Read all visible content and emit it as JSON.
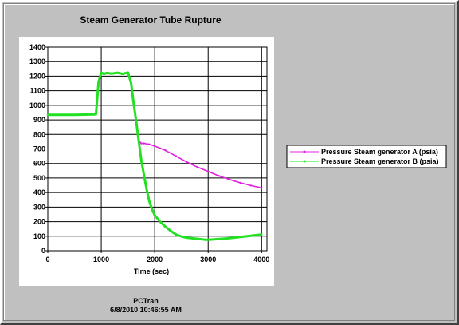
{
  "colors": {
    "background": "#c0c0c0",
    "plot_background": "#ffffff",
    "gridline": "#000000",
    "series_a": "#e020e0",
    "series_b": "#22e022"
  },
  "footer": {
    "program": "PCTran",
    "timestamp": "6/8/2010 10:46:55 AM"
  },
  "chart_data": {
    "type": "line",
    "title": "Steam Generator Tube Rupture",
    "xlabel": "Time (sec)",
    "ylabel": "",
    "xlim": [
      0,
      4100
    ],
    "ylim": [
      0,
      1400
    ],
    "xticks": [
      0,
      1000,
      2000,
      3000,
      4000
    ],
    "yticks": [
      0,
      100,
      200,
      300,
      400,
      500,
      600,
      700,
      800,
      900,
      1000,
      1100,
      1200,
      1300,
      1400
    ],
    "grid": true,
    "legend_position": "right",
    "series": [
      {
        "name": "Pressure Steam generator A (psia)",
        "color": "#e020e0",
        "x": [
          0,
          100,
          300,
          500,
          700,
          900,
          950,
          1000,
          1050,
          1100,
          1200,
          1300,
          1400,
          1500,
          1560,
          1600,
          1650,
          1700,
          1750,
          1800,
          1900,
          2000,
          2200,
          2400,
          2600,
          2800,
          3000,
          3200,
          3400,
          3600,
          3800,
          4000
        ],
        "y": [
          935,
          935,
          935,
          935,
          936,
          938,
          1160,
          1225,
          1215,
          1222,
          1218,
          1224,
          1216,
          1225,
          1150,
          1030,
          900,
          760,
          738,
          738,
          732,
          720,
          690,
          650,
          610,
          575,
          545,
          515,
          490,
          467,
          448,
          432
        ]
      },
      {
        "name": "Pressure Steam generator B (psia)",
        "color": "#22e022",
        "x": [
          0,
          100,
          300,
          500,
          700,
          900,
          950,
          1000,
          1050,
          1100,
          1200,
          1300,
          1400,
          1500,
          1560,
          1600,
          1650,
          1700,
          1750,
          1800,
          1850,
          1900,
          1950,
          2000,
          2100,
          2200,
          2300,
          2400,
          2500,
          2600,
          2800,
          2950,
          3000,
          3200,
          3400,
          3600,
          3800,
          4000
        ],
        "y": [
          935,
          935,
          935,
          935,
          936,
          938,
          1160,
          1225,
          1215,
          1222,
          1218,
          1224,
          1216,
          1225,
          1150,
          1030,
          900,
          760,
          620,
          520,
          420,
          340,
          285,
          245,
          200,
          165,
          135,
          112,
          98,
          90,
          82,
          76,
          76,
          80,
          87,
          95,
          103,
          112
        ]
      }
    ]
  }
}
